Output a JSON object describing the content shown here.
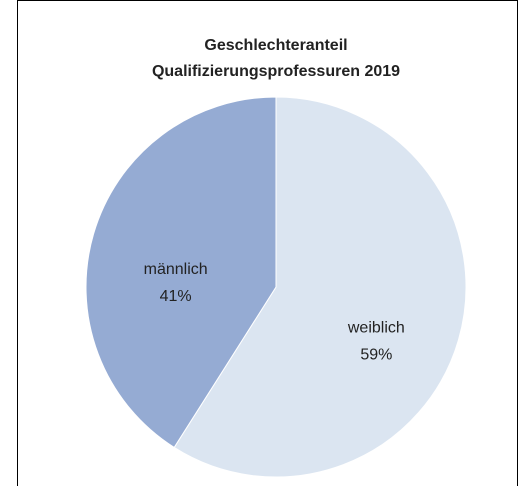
{
  "chart_data": {
    "type": "pie",
    "title": [
      "Geschlechteranteil",
      "Qualifizierungsprofessuren 2019"
    ],
    "categories": [
      "weiblich",
      "männlich"
    ],
    "values": [
      59,
      41
    ],
    "value_labels": [
      "59%",
      "41%"
    ],
    "colors": [
      "#dbe5f1",
      "#95abd3"
    ]
  }
}
